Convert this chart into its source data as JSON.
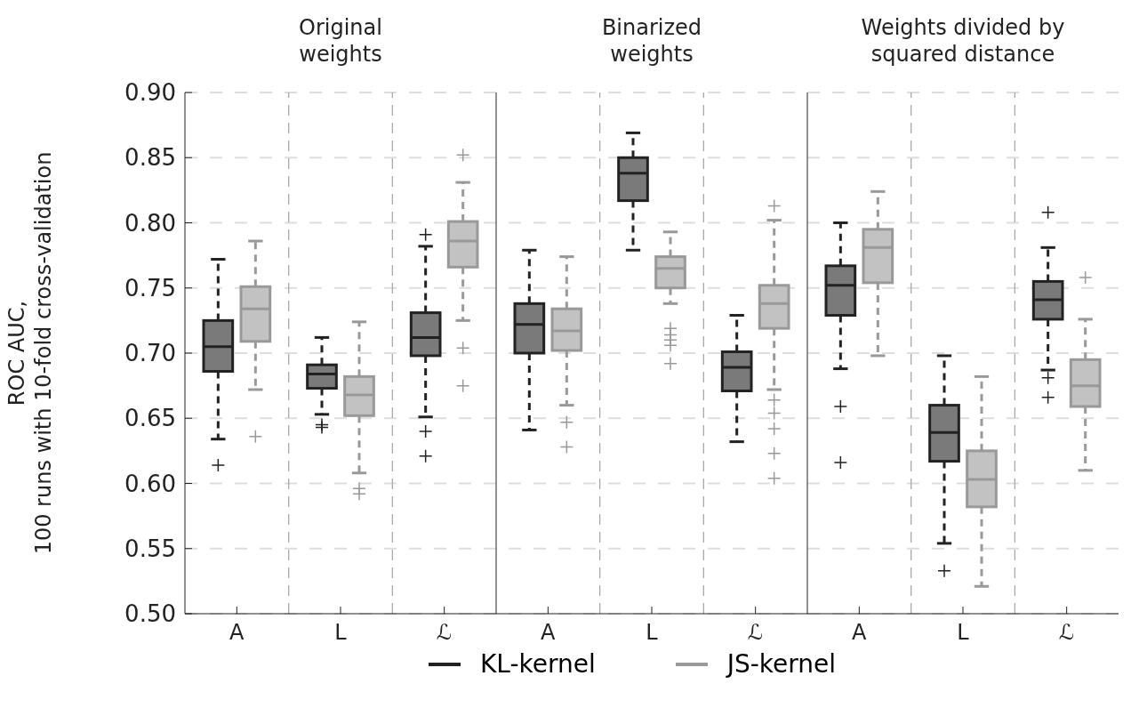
{
  "chart_data": {
    "type": "box",
    "ylabel": "ROC AUC,\n100 runs with 10-fold cross-validation",
    "annotations": [
      "Original\nweights",
      "Binarized\nweights",
      "Weights divided by\nsquared distance"
    ],
    "categories": [
      "A",
      "L",
      "ℒ",
      "A",
      "L",
      "ℒ",
      "A",
      "L",
      "ℒ"
    ],
    "ylim": [
      0.5,
      0.9
    ],
    "yticks": [
      {
        "value": 0.5,
        "label": "0.50"
      },
      {
        "value": 0.55,
        "label": "0.55"
      },
      {
        "value": 0.6,
        "label": "0.60"
      },
      {
        "value": 0.65,
        "label": "0.65"
      },
      {
        "value": 0.7,
        "label": "0.70"
      },
      {
        "value": 0.75,
        "label": "0.75"
      },
      {
        "value": 0.8,
        "label": "0.80"
      },
      {
        "value": 0.85,
        "label": "0.85"
      },
      {
        "value": 0.9,
        "label": "0.90"
      }
    ],
    "grid": true,
    "legend": "bottom",
    "line_style": "dashed",
    "series": [
      {
        "name": "KL-kernel",
        "color": "#222222",
        "boxes": [
          {
            "low": 0.634,
            "q1": 0.686,
            "median": 0.705,
            "q3": 0.725,
            "high": 0.772,
            "outliers": [
              0.614
            ]
          },
          {
            "low": 0.653,
            "q1": 0.673,
            "median": 0.684,
            "q3": 0.691,
            "high": 0.712,
            "outliers": [
              0.645,
              0.643
            ]
          },
          {
            "low": 0.651,
            "q1": 0.698,
            "median": 0.712,
            "q3": 0.731,
            "high": 0.782,
            "outliers": [
              0.791,
              0.64,
              0.621
            ]
          },
          {
            "low": 0.641,
            "q1": 0.7,
            "median": 0.722,
            "q3": 0.738,
            "high": 0.779
          },
          {
            "low": 0.779,
            "q1": 0.817,
            "median": 0.838,
            "q3": 0.85,
            "high": 0.869
          },
          {
            "low": 0.632,
            "q1": 0.671,
            "median": 0.689,
            "q3": 0.701,
            "high": 0.729
          },
          {
            "low": 0.688,
            "q1": 0.729,
            "median": 0.752,
            "q3": 0.767,
            "high": 0.8,
            "outliers": [
              0.659,
              0.616
            ]
          },
          {
            "low": 0.554,
            "q1": 0.617,
            "median": 0.639,
            "q3": 0.66,
            "high": 0.698,
            "outliers": [
              0.533
            ]
          },
          {
            "low": 0.687,
            "q1": 0.726,
            "median": 0.741,
            "q3": 0.755,
            "high": 0.781,
            "outliers": [
              0.808,
              0.681,
              0.666
            ]
          }
        ]
      },
      {
        "name": "JS-kernel",
        "color": "#999999",
        "boxes": [
          {
            "low": 0.672,
            "q1": 0.709,
            "median": 0.734,
            "q3": 0.751,
            "high": 0.786,
            "outliers": [
              0.636
            ]
          },
          {
            "low": 0.608,
            "q1": 0.652,
            "median": 0.668,
            "q3": 0.682,
            "high": 0.724,
            "outliers": [
              0.596,
              0.592
            ]
          },
          {
            "low": 0.725,
            "q1": 0.766,
            "median": 0.786,
            "q3": 0.801,
            "high": 0.831,
            "outliers": [
              0.852,
              0.704,
              0.675
            ]
          },
          {
            "low": 0.66,
            "q1": 0.702,
            "median": 0.717,
            "q3": 0.734,
            "high": 0.774,
            "outliers": [
              0.647,
              0.628
            ]
          },
          {
            "low": 0.738,
            "q1": 0.75,
            "median": 0.765,
            "q3": 0.774,
            "high": 0.793,
            "outliers": [
              0.719,
              0.714,
              0.71,
              0.706,
              0.692
            ]
          },
          {
            "low": 0.672,
            "q1": 0.719,
            "median": 0.738,
            "q3": 0.752,
            "high": 0.802,
            "outliers": [
              0.813,
              0.664,
              0.654,
              0.642,
              0.623,
              0.604
            ]
          },
          {
            "low": 0.698,
            "q1": 0.754,
            "median": 0.781,
            "q3": 0.795,
            "high": 0.824
          },
          {
            "low": 0.521,
            "q1": 0.582,
            "median": 0.603,
            "q3": 0.625,
            "high": 0.682
          },
          {
            "low": 0.61,
            "q1": 0.659,
            "median": 0.675,
            "q3": 0.695,
            "high": 0.726,
            "outliers": [
              0.758
            ]
          }
        ]
      }
    ]
  }
}
